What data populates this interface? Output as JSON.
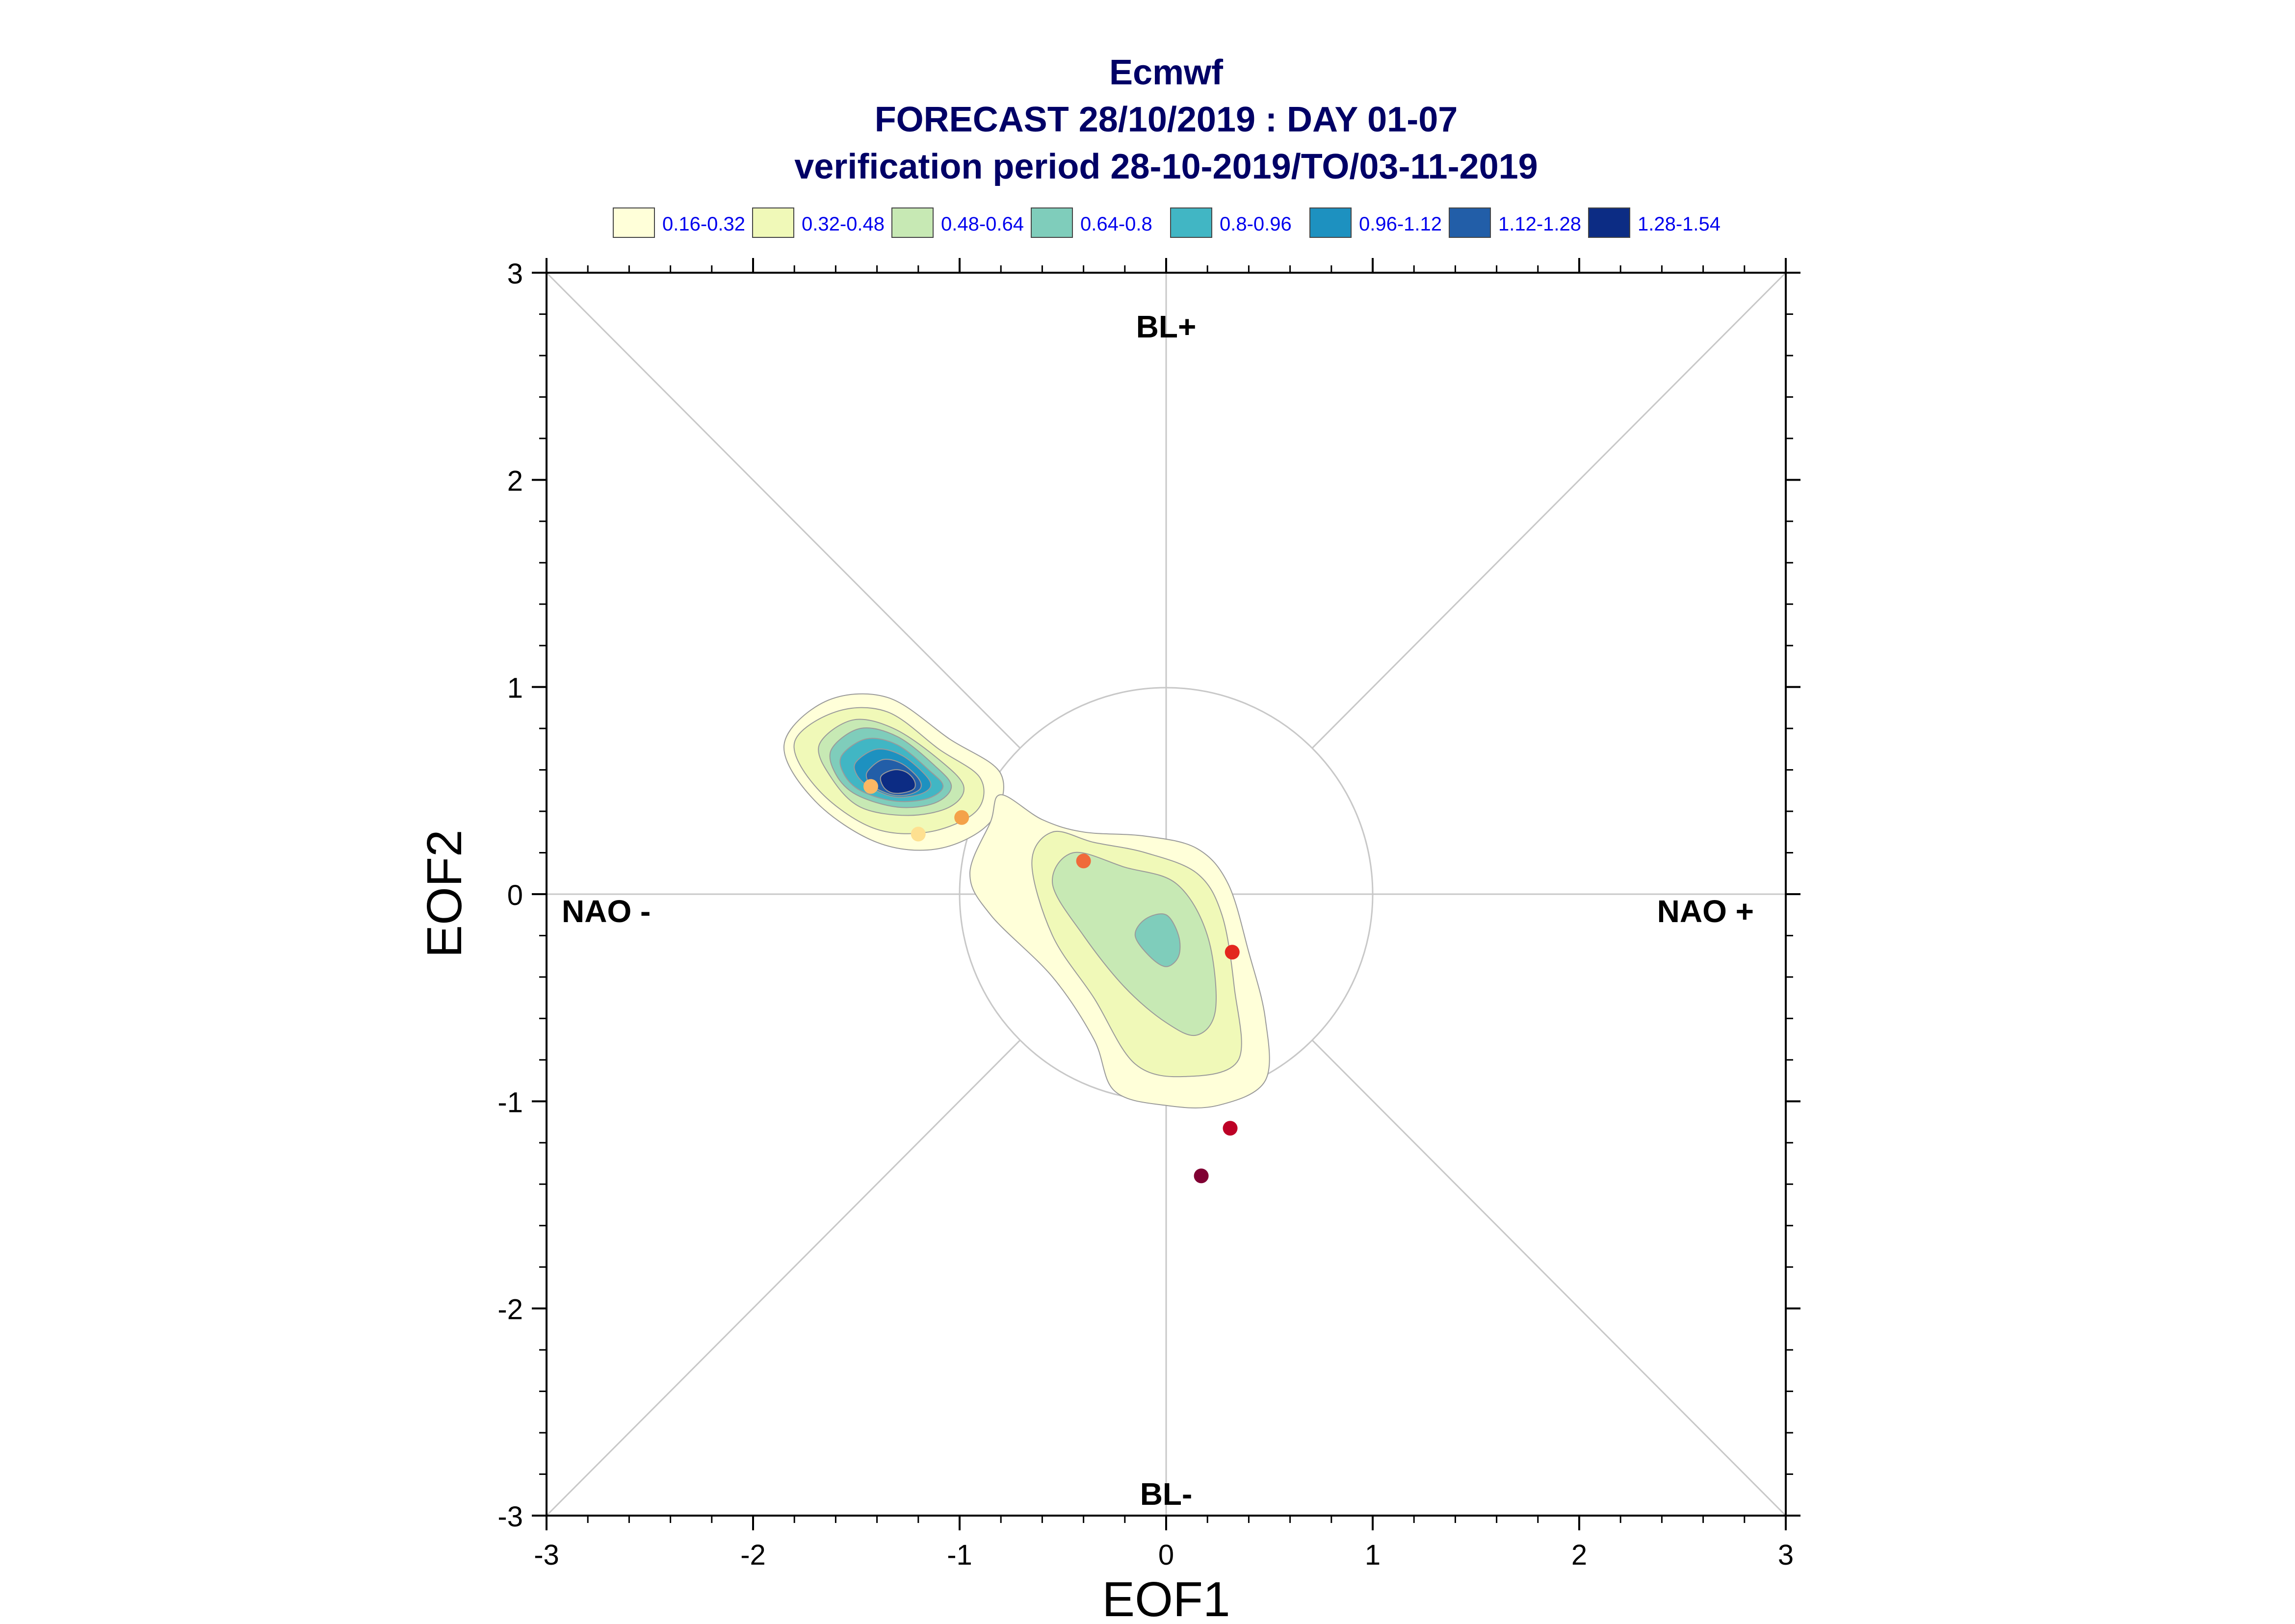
{
  "chart_data": {
    "type": "scatter",
    "title_lines": [
      "Ecmwf",
      "FORECAST 28/10/2019 : DAY 01-07",
      "verification period 28-10-2019/TO/03-11-2019"
    ],
    "xlabel": "EOF1",
    "ylabel": "EOF2",
    "xlim": [
      -3,
      3
    ],
    "ylim": [
      -3,
      3
    ],
    "x_ticks": [
      "-3",
      "-2",
      "-1",
      "0",
      "1",
      "2",
      "3"
    ],
    "y_ticks": [
      "-3",
      "-2",
      "-1",
      "0",
      "1",
      "2",
      "3"
    ],
    "regions": {
      "top": "BL+",
      "bottom": "BL-",
      "left": "NAO -",
      "right": "NAO +"
    },
    "reference_circle_radius": 1,
    "legend": [
      {
        "label": "0.16-0.32",
        "color": "#ffffd9"
      },
      {
        "label": "0.32-0.48",
        "color": "#f0f9b8"
      },
      {
        "label": "0.48-0.64",
        "color": "#c7e9b4"
      },
      {
        "label": "0.64-0.8",
        "color": "#7fcdbb"
      },
      {
        "label": "0.8-0.96",
        "color": "#41b6c4"
      },
      {
        "label": "0.96-1.12",
        "color": "#1d91c0"
      },
      {
        "label": "1.12-1.28",
        "color": "#225ea8"
      },
      {
        "label": "1.28-1.54",
        "color": "#0c2c84"
      }
    ],
    "density_clusters": [
      {
        "levels": [
          {
            "color": "#ffffd9",
            "points": [
              [
                -1.85,
                0.72
              ],
              [
                -1.65,
                0.93
              ],
              [
                -1.35,
                0.95
              ],
              [
                -1.05,
                0.75
              ],
              [
                -0.8,
                0.58
              ],
              [
                -0.85,
                0.35
              ],
              [
                -1.1,
                0.22
              ],
              [
                -1.4,
                0.25
              ],
              [
                -1.7,
                0.45
              ]
            ]
          },
          {
            "color": "#f0f9b8",
            "points": [
              [
                -1.8,
                0.73
              ],
              [
                -1.6,
                0.88
              ],
              [
                -1.35,
                0.88
              ],
              [
                -1.1,
                0.7
              ],
              [
                -0.9,
                0.56
              ],
              [
                -0.92,
                0.4
              ],
              [
                -1.15,
                0.3
              ],
              [
                -1.42,
                0.32
              ],
              [
                -1.68,
                0.5
              ]
            ]
          },
          {
            "color": "#c7e9b4",
            "points": [
              [
                -1.68,
                0.72
              ],
              [
                -1.52,
                0.84
              ],
              [
                -1.32,
                0.8
              ],
              [
                -1.1,
                0.65
              ],
              [
                -0.98,
                0.52
              ],
              [
                -1.05,
                0.42
              ],
              [
                -1.25,
                0.38
              ],
              [
                -1.48,
                0.42
              ],
              [
                -1.62,
                0.56
              ]
            ]
          },
          {
            "color": "#7fcdbb",
            "points": [
              [
                -1.62,
                0.7
              ],
              [
                -1.48,
                0.8
              ],
              [
                -1.3,
                0.76
              ],
              [
                -1.12,
                0.62
              ],
              [
                -1.04,
                0.52
              ],
              [
                -1.12,
                0.44
              ],
              [
                -1.3,
                0.42
              ],
              [
                -1.5,
                0.48
              ],
              [
                -1.6,
                0.58
              ]
            ]
          },
          {
            "color": "#41b6c4",
            "points": [
              [
                -1.57,
                0.67
              ],
              [
                -1.45,
                0.75
              ],
              [
                -1.3,
                0.72
              ],
              [
                -1.15,
                0.6
              ],
              [
                -1.08,
                0.52
              ],
              [
                -1.16,
                0.46
              ],
              [
                -1.32,
                0.45
              ],
              [
                -1.48,
                0.5
              ],
              [
                -1.56,
                0.58
              ]
            ]
          },
          {
            "color": "#1d91c0",
            "points": [
              [
                -1.5,
                0.64
              ],
              [
                -1.4,
                0.7
              ],
              [
                -1.28,
                0.67
              ],
              [
                -1.17,
                0.58
              ],
              [
                -1.14,
                0.52
              ],
              [
                -1.2,
                0.48
              ],
              [
                -1.32,
                0.47
              ],
              [
                -1.44,
                0.52
              ],
              [
                -1.5,
                0.58
              ]
            ]
          },
          {
            "color": "#225ea8",
            "points": [
              [
                -1.44,
                0.6
              ],
              [
                -1.37,
                0.65
              ],
              [
                -1.28,
                0.63
              ],
              [
                -1.2,
                0.56
              ],
              [
                -1.19,
                0.51
              ],
              [
                -1.25,
                0.48
              ],
              [
                -1.33,
                0.48
              ],
              [
                -1.42,
                0.52
              ],
              [
                -1.45,
                0.56
              ]
            ]
          },
          {
            "color": "#0c2c84",
            "points": [
              [
                -1.38,
                0.57
              ],
              [
                -1.32,
                0.6
              ],
              [
                -1.26,
                0.59
              ],
              [
                -1.22,
                0.55
              ],
              [
                -1.22,
                0.51
              ],
              [
                -1.27,
                0.49
              ],
              [
                -1.33,
                0.49
              ],
              [
                -1.37,
                0.52
              ]
            ]
          }
        ]
      },
      {
        "levels": [
          {
            "color": "#ffffd9",
            "points": [
              [
                -0.85,
                0.35
              ],
              [
                -0.8,
                0.48
              ],
              [
                -0.6,
                0.36
              ],
              [
                -0.4,
                0.3
              ],
              [
                -0.1,
                0.28
              ],
              [
                0.15,
                0.22
              ],
              [
                0.3,
                0.05
              ],
              [
                0.4,
                -0.28
              ],
              [
                0.48,
                -0.6
              ],
              [
                0.48,
                -0.9
              ],
              [
                0.25,
                -1.02
              ],
              [
                0.0,
                -1.02
              ],
              [
                -0.25,
                -0.95
              ],
              [
                -0.35,
                -0.7
              ],
              [
                -0.55,
                -0.4
              ],
              [
                -0.85,
                -0.1
              ],
              [
                -0.95,
                0.1
              ]
            ]
          },
          {
            "color": "#f0f9b8",
            "points": [
              [
                -0.65,
                0.15
              ],
              [
                -0.55,
                0.3
              ],
              [
                -0.35,
                0.25
              ],
              [
                -0.1,
                0.2
              ],
              [
                0.15,
                0.1
              ],
              [
                0.27,
                -0.1
              ],
              [
                0.33,
                -0.45
              ],
              [
                0.35,
                -0.8
              ],
              [
                0.1,
                -0.88
              ],
              [
                -0.15,
                -0.82
              ],
              [
                -0.35,
                -0.5
              ],
              [
                -0.55,
                -0.2
              ]
            ]
          },
          {
            "color": "#c7e9b4",
            "points": [
              [
                -0.55,
                0.05
              ],
              [
                -0.45,
                0.2
              ],
              [
                -0.2,
                0.13
              ],
              [
                0.05,
                0.05
              ],
              [
                0.2,
                -0.2
              ],
              [
                0.24,
                -0.55
              ],
              [
                0.15,
                -0.68
              ],
              [
                0.0,
                -0.62
              ],
              [
                -0.2,
                -0.45
              ],
              [
                -0.4,
                -0.2
              ]
            ]
          },
          {
            "color": "#7fcdbb",
            "points": [
              [
                -0.1,
                -0.12
              ],
              [
                0.0,
                -0.1
              ],
              [
                0.06,
                -0.2
              ],
              [
                0.06,
                -0.3
              ],
              [
                0.0,
                -0.35
              ],
              [
                -0.08,
                -0.3
              ],
              [
                -0.15,
                -0.2
              ]
            ]
          }
        ]
      }
    ],
    "points": [
      {
        "x": -1.43,
        "y": 0.52,
        "color": "#fdb863"
      },
      {
        "x": -1.2,
        "y": 0.29,
        "color": "#fee090"
      },
      {
        "x": -0.99,
        "y": 0.37,
        "color": "#f4a24a"
      },
      {
        "x": -0.4,
        "y": 0.16,
        "color": "#f06a3a"
      },
      {
        "x": 0.32,
        "y": -0.28,
        "color": "#e3271e"
      },
      {
        "x": 0.31,
        "y": -1.13,
        "color": "#bd0026"
      },
      {
        "x": 0.17,
        "y": -1.36,
        "color": "#800033"
      }
    ]
  }
}
